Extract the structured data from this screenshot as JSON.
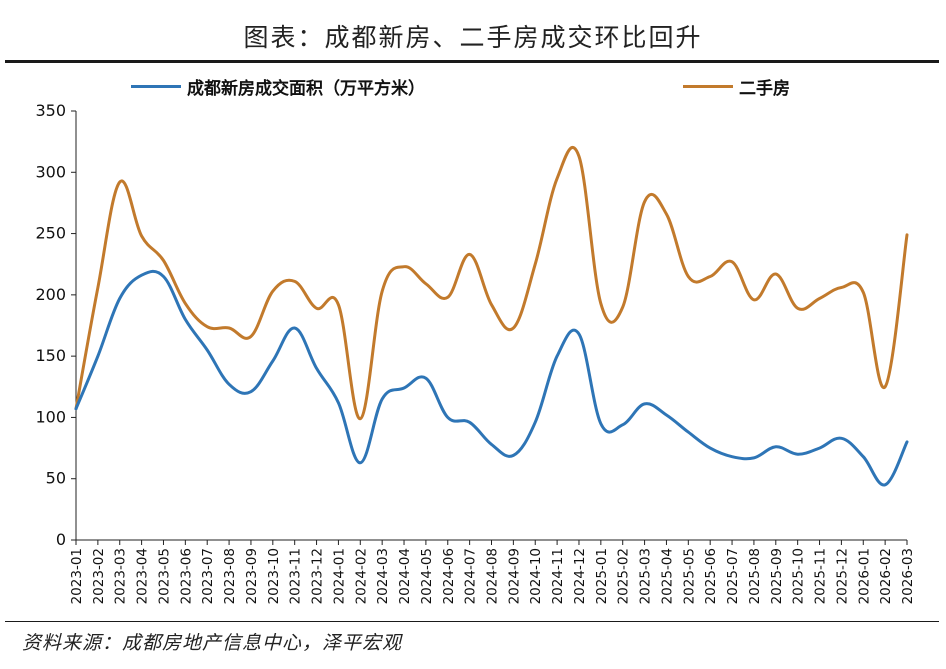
{
  "title": "图表：成都新房、二手房成交环比回升",
  "source": "资料来源：成都房地产信息中心，泽平宏观",
  "colors": {
    "series_new": "#2E75B6",
    "series_second": "#C27A2C",
    "axis": "#222222"
  },
  "chart_data": {
    "type": "line",
    "ylim": [
      0,
      350
    ],
    "yticks": [
      0,
      50,
      100,
      150,
      200,
      250,
      300,
      350
    ],
    "grid": false,
    "legend_position": "top",
    "categories": [
      "2023-01",
      "2023-02",
      "2023-03",
      "2023-04",
      "2023-05",
      "2023-06",
      "2023-07",
      "2023-08",
      "2023-09",
      "2023-10",
      "2023-11",
      "2023-12",
      "2024-01",
      "2024-02",
      "2024-03",
      "2024-04",
      "2024-05",
      "2024-06",
      "2024-07",
      "2024-08",
      "2024-09",
      "2024-10",
      "2024-11",
      "2024-12",
      "2025-01",
      "2025-02",
      "2025-03",
      "2025-04",
      "2025-05",
      "2025-06",
      "2025-07",
      "2025-08",
      "2025-09",
      "2025-10",
      "2025-11",
      "2025-12",
      "2026-01",
      "2026-02",
      "2026-03"
    ],
    "series": [
      {
        "name": "成都新房成交面积（万平方米）",
        "color": "#2E75B6",
        "values": [
          107,
          150,
          197,
          216,
          215,
          180,
          155,
          127,
          121,
          146,
          173,
          140,
          112,
          63,
          115,
          124,
          132,
          100,
          96,
          78,
          69,
          96,
          150,
          168,
          95,
          94,
          111,
          102,
          88,
          75,
          68,
          67,
          76,
          70,
          75,
          83,
          68,
          45,
          80
        ]
      },
      {
        "name": "二手房",
        "color": "#C27A2C",
        "values": [
          107,
          206,
          292,
          248,
          228,
          193,
          174,
          173,
          166,
          203,
          211,
          189,
          192,
          99,
          203,
          223,
          209,
          198,
          233,
          192,
          173,
          225,
          295,
          313,
          193,
          190,
          276,
          266,
          215,
          215,
          227,
          196,
          217,
          189,
          197,
          206,
          202,
          125,
          249
        ]
      }
    ]
  }
}
